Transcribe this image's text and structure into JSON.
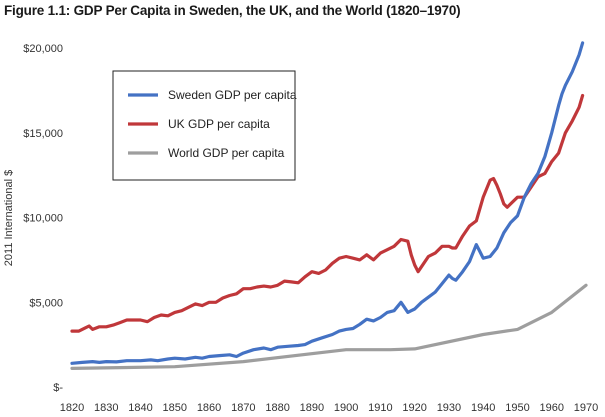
{
  "title": "Figure 1.1: GDP Per Capita in Sweden, the UK, and the World (1820–1970)",
  "chart_data": {
    "type": "line",
    "title": "Figure 1.1: GDP Per Capita in Sweden, the UK, and the World (1820–1970)",
    "xlabel": "",
    "ylabel": "2011 International $",
    "xlim": [
      1820,
      1970
    ],
    "ylim": [
      0,
      20000
    ],
    "x_ticks": [
      1820,
      1830,
      1840,
      1850,
      1860,
      1870,
      1880,
      1890,
      1900,
      1910,
      1920,
      1930,
      1940,
      1950,
      1960,
      1970
    ],
    "x_tick_labels": [
      "1820",
      "1830",
      "1840",
      "1850",
      "1860",
      "1870",
      "1880",
      "1890",
      "1900",
      "1910",
      "1920",
      "1930",
      "1940",
      "1950",
      "1960",
      "1970"
    ],
    "y_ticks": [
      0,
      5000,
      10000,
      15000,
      20000
    ],
    "y_tick_labels": [
      "$-",
      "$5,000",
      "$10,000",
      "$15,000",
      "$20,000"
    ],
    "grid": false,
    "legend_position": "top-left",
    "series": [
      {
        "name": "Sweden GDP per capita",
        "color": "#4472C4",
        "points": [
          [
            1820,
            1400
          ],
          [
            1823,
            1450
          ],
          [
            1826,
            1500
          ],
          [
            1828,
            1450
          ],
          [
            1830,
            1500
          ],
          [
            1833,
            1480
          ],
          [
            1836,
            1550
          ],
          [
            1840,
            1550
          ],
          [
            1843,
            1600
          ],
          [
            1845,
            1550
          ],
          [
            1848,
            1650
          ],
          [
            1850,
            1700
          ],
          [
            1853,
            1650
          ],
          [
            1856,
            1750
          ],
          [
            1858,
            1700
          ],
          [
            1860,
            1800
          ],
          [
            1863,
            1850
          ],
          [
            1866,
            1900
          ],
          [
            1868,
            1800
          ],
          [
            1870,
            2000
          ],
          [
            1873,
            2200
          ],
          [
            1876,
            2300
          ],
          [
            1878,
            2200
          ],
          [
            1880,
            2350
          ],
          [
            1883,
            2400
          ],
          [
            1886,
            2450
          ],
          [
            1888,
            2500
          ],
          [
            1890,
            2700
          ],
          [
            1893,
            2900
          ],
          [
            1896,
            3100
          ],
          [
            1898,
            3300
          ],
          [
            1900,
            3400
          ],
          [
            1902,
            3450
          ],
          [
            1904,
            3700
          ],
          [
            1906,
            4000
          ],
          [
            1908,
            3900
          ],
          [
            1910,
            4100
          ],
          [
            1912,
            4400
          ],
          [
            1914,
            4500
          ],
          [
            1916,
            5000
          ],
          [
            1917,
            4700
          ],
          [
            1918,
            4400
          ],
          [
            1919,
            4500
          ],
          [
            1920,
            4600
          ],
          [
            1922,
            5000
          ],
          [
            1924,
            5300
          ],
          [
            1926,
            5600
          ],
          [
            1928,
            6100
          ],
          [
            1930,
            6600
          ],
          [
            1931,
            6400
          ],
          [
            1932,
            6300
          ],
          [
            1934,
            6800
          ],
          [
            1936,
            7400
          ],
          [
            1938,
            8400
          ],
          [
            1939,
            8000
          ],
          [
            1940,
            7600
          ],
          [
            1942,
            7700
          ],
          [
            1944,
            8200
          ],
          [
            1946,
            9100
          ],
          [
            1948,
            9700
          ],
          [
            1950,
            10100
          ],
          [
            1952,
            11200
          ],
          [
            1954,
            12000
          ],
          [
            1956,
            12600
          ],
          [
            1958,
            13600
          ],
          [
            1960,
            15000
          ],
          [
            1962,
            16600
          ],
          [
            1963,
            17300
          ],
          [
            1964,
            17800
          ],
          [
            1966,
            18600
          ],
          [
            1968,
            19600
          ],
          [
            1969,
            20300
          ]
        ]
      },
      {
        "name": "UK GDP per capita",
        "color": "#C0373A",
        "points": [
          [
            1820,
            3300
          ],
          [
            1822,
            3300
          ],
          [
            1824,
            3500
          ],
          [
            1825,
            3600
          ],
          [
            1826,
            3400
          ],
          [
            1828,
            3550
          ],
          [
            1830,
            3550
          ],
          [
            1832,
            3650
          ],
          [
            1834,
            3800
          ],
          [
            1836,
            3950
          ],
          [
            1838,
            3950
          ],
          [
            1840,
            3950
          ],
          [
            1842,
            3850
          ],
          [
            1844,
            4100
          ],
          [
            1846,
            4250
          ],
          [
            1848,
            4200
          ],
          [
            1850,
            4400
          ],
          [
            1852,
            4500
          ],
          [
            1854,
            4700
          ],
          [
            1856,
            4900
          ],
          [
            1858,
            4800
          ],
          [
            1860,
            5000
          ],
          [
            1862,
            5000
          ],
          [
            1864,
            5250
          ],
          [
            1866,
            5400
          ],
          [
            1868,
            5500
          ],
          [
            1870,
            5800
          ],
          [
            1872,
            5800
          ],
          [
            1874,
            5900
          ],
          [
            1876,
            5950
          ],
          [
            1878,
            5900
          ],
          [
            1880,
            6000
          ],
          [
            1882,
            6250
          ],
          [
            1884,
            6200
          ],
          [
            1886,
            6150
          ],
          [
            1888,
            6500
          ],
          [
            1890,
            6800
          ],
          [
            1892,
            6700
          ],
          [
            1894,
            6900
          ],
          [
            1896,
            7300
          ],
          [
            1898,
            7600
          ],
          [
            1900,
            7700
          ],
          [
            1902,
            7600
          ],
          [
            1904,
            7500
          ],
          [
            1906,
            7800
          ],
          [
            1908,
            7500
          ],
          [
            1910,
            7900
          ],
          [
            1912,
            8100
          ],
          [
            1914,
            8300
          ],
          [
            1916,
            8700
          ],
          [
            1918,
            8600
          ],
          [
            1919,
            7800
          ],
          [
            1920,
            7200
          ],
          [
            1921,
            6800
          ],
          [
            1922,
            7100
          ],
          [
            1924,
            7700
          ],
          [
            1926,
            7900
          ],
          [
            1928,
            8300
          ],
          [
            1930,
            8300
          ],
          [
            1931,
            8200
          ],
          [
            1932,
            8200
          ],
          [
            1934,
            8900
          ],
          [
            1936,
            9500
          ],
          [
            1938,
            9800
          ],
          [
            1940,
            11200
          ],
          [
            1942,
            12200
          ],
          [
            1943,
            12300
          ],
          [
            1944,
            11900
          ],
          [
            1945,
            11400
          ],
          [
            1946,
            10800
          ],
          [
            1947,
            10600
          ],
          [
            1948,
            10800
          ],
          [
            1950,
            11200
          ],
          [
            1952,
            11200
          ],
          [
            1954,
            11800
          ],
          [
            1956,
            12400
          ],
          [
            1958,
            12600
          ],
          [
            1960,
            13300
          ],
          [
            1962,
            13800
          ],
          [
            1963,
            14400
          ],
          [
            1964,
            15000
          ],
          [
            1966,
            15700
          ],
          [
            1968,
            16500
          ],
          [
            1969,
            17200
          ]
        ]
      },
      {
        "name": "World GDP per capita",
        "color": "#9E9E9E",
        "points": [
          [
            1820,
            1100
          ],
          [
            1850,
            1200
          ],
          [
            1870,
            1500
          ],
          [
            1900,
            2200
          ],
          [
            1913,
            2200
          ],
          [
            1920,
            2250
          ],
          [
            1940,
            3100
          ],
          [
            1950,
            3400
          ],
          [
            1960,
            4400
          ],
          [
            1970,
            6000
          ]
        ]
      }
    ]
  }
}
